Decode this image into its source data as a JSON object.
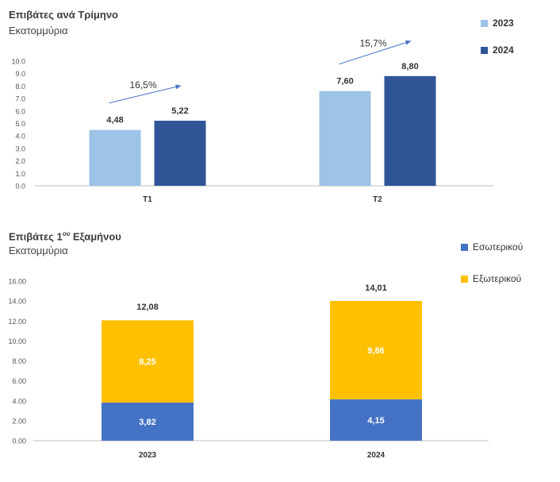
{
  "chart_data": [
    {
      "type": "bar",
      "title": "Επιβάτες ανά Τρίμηνο",
      "subtitle": "Εκατομμύρια",
      "categories": [
        "T1",
        "T2"
      ],
      "series": [
        {
          "name": "2023",
          "values": [
            4.48,
            7.6
          ],
          "labels": [
            "4,48",
            "7,60"
          ],
          "color": "#9dc3e6"
        },
        {
          "name": "2024",
          "values": [
            5.22,
            8.8
          ],
          "labels": [
            "5,22",
            "8,80"
          ],
          "color": "#2f5597"
        }
      ],
      "growth_annotations": [
        "16,5%",
        "15,7%"
      ],
      "ylim": [
        0,
        10
      ],
      "yticks": [
        "0.0",
        "1.0",
        "2.0",
        "3.0",
        "4.0",
        "5.0",
        "6.0",
        "7.0",
        "8.0",
        "9.0",
        "10.0"
      ],
      "legend_position": "top-right"
    },
    {
      "type": "stacked-bar",
      "title_main": "Επιβάτες 1",
      "title_sup": "ου",
      "title_end": " Εξαμήνου",
      "subtitle": "Εκατομμύρια",
      "categories": [
        "2023",
        "2024"
      ],
      "series": [
        {
          "name": "Εσωτερικού",
          "values": [
            3.82,
            4.15
          ],
          "labels": [
            "3,82",
            "4,15"
          ],
          "color": "#4472c4"
        },
        {
          "name": "Εξωτερικού",
          "values": [
            8.25,
            9.86
          ],
          "labels": [
            "8,25",
            "9,86"
          ],
          "color": "#ffc000"
        }
      ],
      "totals": [
        12.08,
        14.01
      ],
      "total_labels": [
        "12,08",
        "14,01"
      ],
      "ylim": [
        0,
        16
      ],
      "yticks": [
        "0.00",
        "2.00",
        "4.00",
        "6.00",
        "8.00",
        "10.00",
        "12.00",
        "14.00",
        "16.00"
      ],
      "legend_position": "top-right"
    }
  ]
}
